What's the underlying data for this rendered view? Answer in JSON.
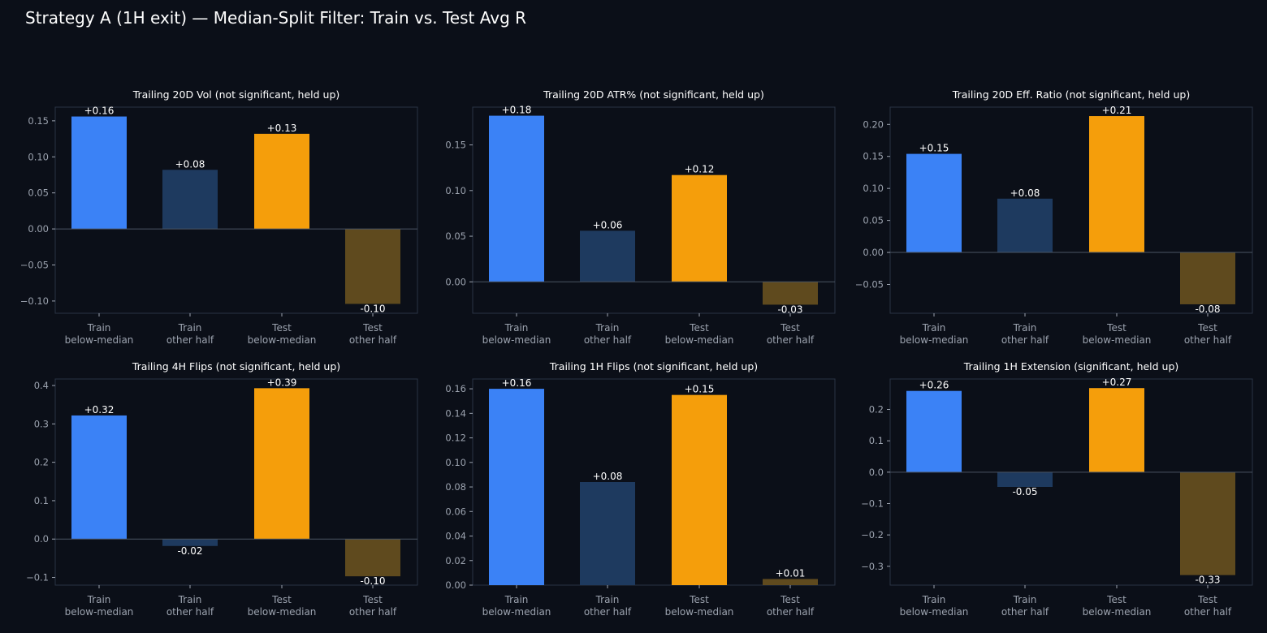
{
  "title": "Strategy A (1H exit) — Median-Split Filter: Train vs. Test Avg R",
  "colors": {
    "background": "#0b0f18",
    "train_below": "#3b82f6",
    "train_other": "#1e3a5f",
    "test_below": "#f59e0b",
    "test_other": "#5f4a1e",
    "frame": "#2a3344",
    "tick_text": "#9ca3af",
    "label_text": "#ffffff"
  },
  "chart_data": [
    {
      "type": "bar",
      "title": "Trailing 20D Vol (not significant, held up)",
      "categories": [
        "Train\nbelow-median",
        "Train\nother half",
        "Test\nbelow-median",
        "Test\nother half"
      ],
      "values": [
        0.156,
        0.082,
        0.132,
        -0.104
      ],
      "labels": [
        "+0.16",
        "+0.08",
        "+0.13",
        "-0.10"
      ],
      "ylim": [
        -0.117,
        0.169
      ],
      "yticks": [
        -0.1,
        -0.05,
        0.0,
        0.05,
        0.1,
        0.15
      ],
      "ytick_labels": [
        "−0.10",
        "−0.05",
        "0.00",
        "0.05",
        "0.10",
        "0.15"
      ]
    },
    {
      "type": "bar",
      "title": "Trailing 20D ATR% (not significant, held up)",
      "categories": [
        "Train\nbelow-median",
        "Train\nother half",
        "Test\nbelow-median",
        "Test\nother half"
      ],
      "values": [
        0.182,
        0.056,
        0.117,
        -0.025
      ],
      "labels": [
        "+0.18",
        "+0.06",
        "+0.12",
        "-0.03"
      ],
      "ylim": [
        -0.0344,
        0.1914
      ],
      "yticks": [
        0.0,
        0.05,
        0.1,
        0.15
      ],
      "ytick_labels": [
        "0.00",
        "0.05",
        "0.10",
        "0.15"
      ]
    },
    {
      "type": "bar",
      "title": "Trailing 20D Eff. Ratio (not significant, held up)",
      "categories": [
        "Train\nbelow-median",
        "Train\nother half",
        "Test\nbelow-median",
        "Test\nother half"
      ],
      "values": [
        0.154,
        0.084,
        0.213,
        -0.081
      ],
      "labels": [
        "+0.15",
        "+0.08",
        "+0.21",
        "-0.08"
      ],
      "ylim": [
        -0.095,
        0.227
      ],
      "yticks": [
        -0.05,
        0.0,
        0.05,
        0.1,
        0.15,
        0.2
      ],
      "ytick_labels": [
        "−0.05",
        "0.00",
        "0.05",
        "0.10",
        "0.15",
        "0.20"
      ]
    },
    {
      "type": "bar",
      "title": "Trailing 4H Flips (not significant, held up)",
      "categories": [
        "Train\nbelow-median",
        "Train\nother half",
        "Test\nbelow-median",
        "Test\nother half"
      ],
      "values": [
        0.322,
        -0.018,
        0.393,
        -0.097
      ],
      "labels": [
        "+0.32",
        "-0.02",
        "+0.39",
        "-0.10"
      ],
      "ylim": [
        -0.12,
        0.417
      ],
      "yticks": [
        -0.1,
        0.0,
        0.1,
        0.2,
        0.3,
        0.4
      ],
      "ytick_labels": [
        "−0.1",
        "0.0",
        "0.1",
        "0.2",
        "0.3",
        "0.4"
      ]
    },
    {
      "type": "bar",
      "title": "Trailing 1H Flips (not significant, held up)",
      "categories": [
        "Train\nbelow-median",
        "Train\nother half",
        "Test\nbelow-median",
        "Test\nother half"
      ],
      "values": [
        0.16,
        0.084,
        0.155,
        0.005
      ],
      "labels": [
        "+0.16",
        "+0.08",
        "+0.15",
        "+0.01"
      ],
      "ylim": [
        0.0,
        0.168
      ],
      "yticks": [
        0.0,
        0.02,
        0.04,
        0.06,
        0.08,
        0.1,
        0.12,
        0.14,
        0.16
      ],
      "ytick_labels": [
        "0.00",
        "0.02",
        "0.04",
        "0.06",
        "0.08",
        "0.10",
        "0.12",
        "0.14",
        "0.16"
      ]
    },
    {
      "type": "bar",
      "title": "Trailing 1H Extension (significant, held up)",
      "categories": [
        "Train\nbelow-median",
        "Train\nother half",
        "Test\nbelow-median",
        "Test\nother half"
      ],
      "values": [
        0.259,
        -0.047,
        0.268,
        -0.328
      ],
      "labels": [
        "+0.26",
        "-0.05",
        "+0.27",
        "-0.33"
      ],
      "ylim": [
        -0.36,
        0.297
      ],
      "yticks": [
        -0.3,
        -0.2,
        -0.1,
        0.0,
        0.1,
        0.2
      ],
      "ytick_labels": [
        "−0.3",
        "−0.2",
        "−0.1",
        "0.0",
        "0.1",
        "0.2"
      ]
    }
  ]
}
